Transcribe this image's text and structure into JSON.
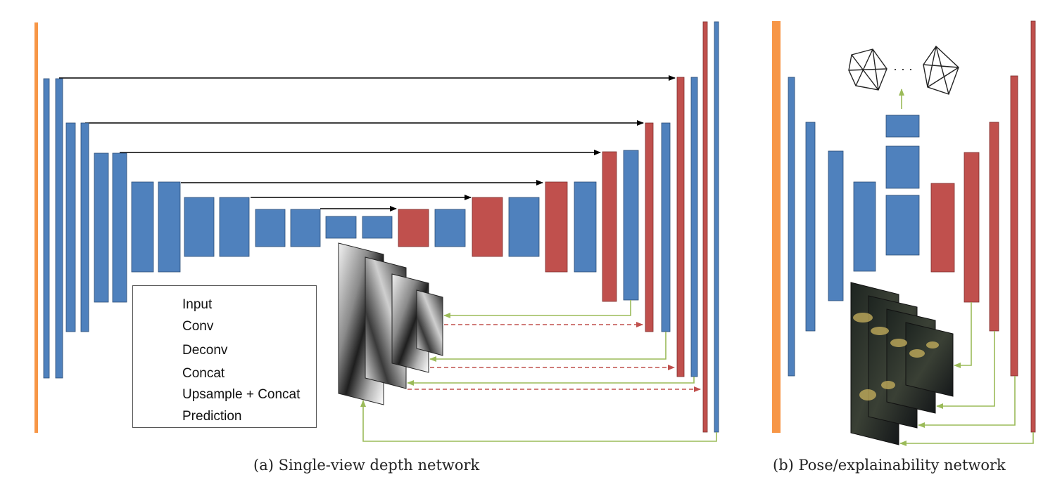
{
  "colors": {
    "input": "#f79646",
    "conv": "#4f81bd",
    "deconv": "#c0504d",
    "concat": "#000000",
    "upsample": "#c0504d",
    "prediction": "#9bbb59"
  },
  "legend": {
    "input": "Input",
    "conv": "Conv",
    "deconv": "Deconv",
    "concat": "Concat",
    "upsample": "Upsample + Concat",
    "prediction": "Prediction"
  },
  "captions": {
    "a": "(a) Single-view depth network",
    "b": "(b) Pose/explainability network"
  },
  "pose_ellipsis": "· · ·"
}
